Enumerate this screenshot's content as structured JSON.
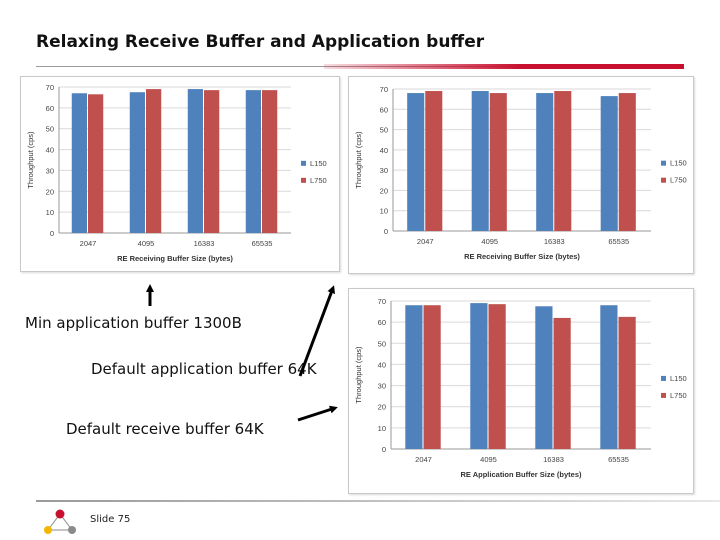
{
  "title": "Relaxing Receive Buffer and Application buffer",
  "captions": {
    "min_app": "Min application buffer 1300B",
    "default_app": "Default application buffer 64K",
    "default_recv": "Default receive buffer 64K"
  },
  "footer": {
    "slide": "Slide 75"
  },
  "colors": {
    "L150": "#4f81bd",
    "L750": "#c0504d",
    "accent": "#c8102e"
  },
  "chart_data": [
    {
      "type": "bar",
      "categories": [
        "2047",
        "4095",
        "16383",
        "65535"
      ],
      "series": [
        {
          "name": "L150",
          "values": [
            67,
            67.5,
            69,
            68.5
          ]
        },
        {
          "name": "L750",
          "values": [
            66.5,
            69,
            68.5,
            68.5
          ]
        }
      ],
      "xlabel": "RE Receiving Buffer Size (bytes)",
      "ylabel": "Throughput (cps)",
      "ylim": [
        0,
        70
      ],
      "yticks": [
        0,
        10,
        20,
        30,
        40,
        50,
        60,
        70
      ]
    },
    {
      "type": "bar",
      "categories": [
        "2047",
        "4095",
        "16383",
        "65535"
      ],
      "series": [
        {
          "name": "L150",
          "values": [
            68,
            69,
            68,
            66.5
          ]
        },
        {
          "name": "L750",
          "values": [
            69,
            68,
            69,
            68
          ]
        }
      ],
      "xlabel": "RE Receiving Buffer Size (bytes)",
      "ylabel": "Throughput (cps)",
      "ylim": [
        0,
        70
      ],
      "yticks": [
        0,
        10,
        20,
        30,
        40,
        50,
        60,
        70
      ]
    },
    {
      "type": "bar",
      "categories": [
        "2047",
        "4095",
        "16383",
        "65535"
      ],
      "series": [
        {
          "name": "L150",
          "values": [
            68,
            69,
            67.5,
            68
          ]
        },
        {
          "name": "L750",
          "values": [
            68,
            68.5,
            62,
            62.5
          ]
        }
      ],
      "xlabel": "RE Application Buffer Size (bytes)",
      "ylabel": "Throughput (cps)",
      "ylim": [
        0,
        70
      ],
      "yticks": [
        0,
        10,
        20,
        30,
        40,
        50,
        60,
        70
      ]
    }
  ]
}
